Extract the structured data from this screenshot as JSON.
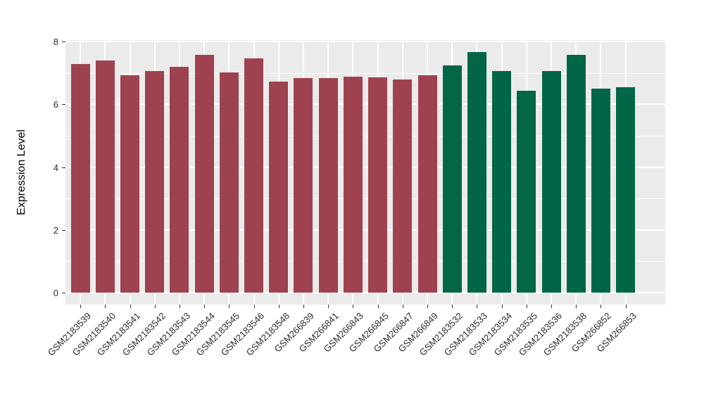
{
  "figure": {
    "background": "#ffffff",
    "panel_background": "#EBEBEB",
    "grid_color": "#FFFFFF",
    "tick_color": "#333333",
    "axis_text_color": "#2b2b2b",
    "axis_title_color": "#000000"
  },
  "chart_data": {
    "type": "bar",
    "title": "",
    "xlabel": "",
    "ylabel": "Expression Level",
    "ylim": [
      0,
      8
    ],
    "yticks": [
      0,
      2,
      4,
      6,
      8
    ],
    "ytick_labels": [
      "0",
      "2",
      "4",
      "6",
      "8"
    ],
    "yticks_minor": [
      1,
      3,
      5,
      7
    ],
    "grid": true,
    "legend": false,
    "categories": [
      "GSM2183539",
      "GSM2183540",
      "GSM2183541",
      "GSM2183542",
      "GSM2183543",
      "GSM2183544",
      "GSM2183545",
      "GSM2183546",
      "GSM2183548",
      "GSM266839",
      "GSM266841",
      "GSM266843",
      "GSM266845",
      "GSM266847",
      "GSM266849",
      "GSM2183532",
      "GSM2183533",
      "GSM2183534",
      "GSM2183535",
      "GSM2183536",
      "GSM2183538",
      "GSM266852",
      "GSM266853"
    ],
    "values": [
      7.29,
      7.4,
      6.93,
      7.07,
      7.19,
      7.57,
      7.02,
      7.47,
      6.72,
      6.83,
      6.83,
      6.88,
      6.86,
      6.8,
      6.92,
      7.24,
      7.66,
      7.06,
      6.44,
      7.06,
      7.57,
      6.5,
      6.55
    ],
    "bar_colors": [
      "#9E4250",
      "#9E4250",
      "#9E4250",
      "#9E4250",
      "#9E4250",
      "#9E4250",
      "#9E4250",
      "#9E4250",
      "#9E4250",
      "#9E4250",
      "#9E4250",
      "#9E4250",
      "#9E4250",
      "#9E4250",
      "#9E4250",
      "#006647",
      "#006647",
      "#006647",
      "#006647",
      "#006647",
      "#006647",
      "#006647",
      "#006647"
    ]
  }
}
